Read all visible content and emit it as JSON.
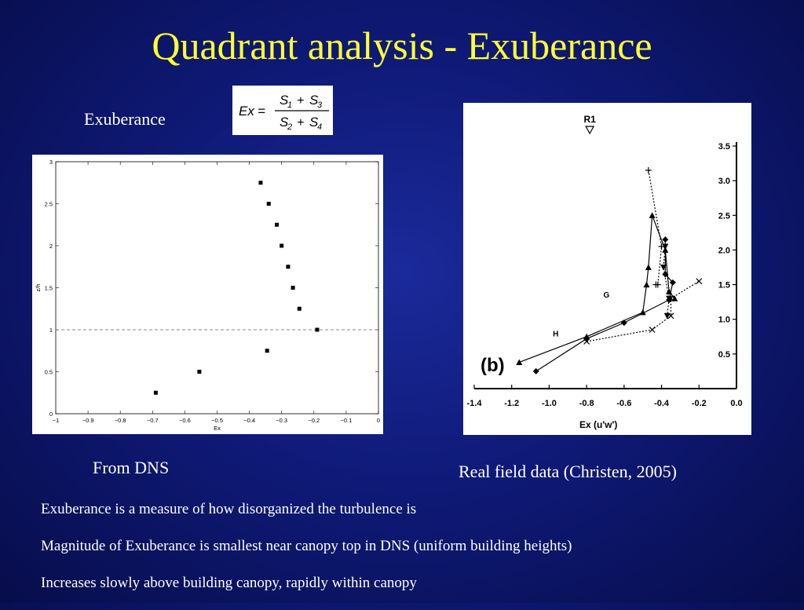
{
  "slide": {
    "title": "Quadrant analysis - Exuberance",
    "exuberance_label": "Exuberance",
    "dns_caption": "From DNS",
    "field_caption": "Real field data (Christen, 2005)",
    "bullets": [
      "Exuberance is a measure of how disorganized the turbulence is",
      "Magnitude of Exuberance is smallest near canopy top in DNS (uniform building heights)",
      "Increases slowly above building canopy, rapidly within canopy"
    ]
  },
  "formula": {
    "lhs": "Ex",
    "equals": "=",
    "numerator": [
      "S",
      "1",
      "+",
      "S",
      "3"
    ],
    "denominator": [
      "S",
      "2",
      "+",
      "S",
      "4"
    ]
  },
  "colors": {
    "title": "#ffff33",
    "text": "#ffffff",
    "background": "#0f1a78"
  },
  "chart_data": [
    {
      "type": "scatter",
      "title": "",
      "xlabel": "Ex",
      "ylabel": "z/h",
      "xlim": [
        -1,
        0
      ],
      "ylim": [
        0,
        3
      ],
      "x_ticks": [
        "−1",
        "−0.9",
        "−0.8",
        "−0.7",
        "−0.6",
        "−0.5",
        "−0.4",
        "−0.3",
        "−0.2",
        "−0.1",
        "0"
      ],
      "y_ticks": [
        "0",
        "0.5",
        "1",
        "1.5",
        "2",
        "2.5",
        "3"
      ],
      "reference_line_y": 1,
      "grid": false,
      "points": [
        {
          "x": -0.69,
          "y": 0.25
        },
        {
          "x": -0.555,
          "y": 0.5
        },
        {
          "x": -0.345,
          "y": 0.75
        },
        {
          "x": -0.19,
          "y": 1.0
        },
        {
          "x": -0.245,
          "y": 1.25
        },
        {
          "x": -0.265,
          "y": 1.5
        },
        {
          "x": -0.28,
          "y": 1.75
        },
        {
          "x": -0.3,
          "y": 2.0
        },
        {
          "x": -0.315,
          "y": 2.25
        },
        {
          "x": -0.34,
          "y": 2.5
        },
        {
          "x": -0.365,
          "y": 2.75
        }
      ]
    },
    {
      "type": "line",
      "panel_label": "(b)",
      "marker_label": "R1",
      "xlabel": "Ex (u'w')",
      "ylabel": "",
      "xlim": [
        -1.4,
        0.0
      ],
      "ylim": [
        0.0,
        3.5
      ],
      "x_ticks": [
        "-1.4",
        "-1.2",
        "-1.0",
        "-0.8",
        "-0.6",
        "-0.4",
        "-0.2",
        "0.0"
      ],
      "y_ticks": [
        "0.5",
        "1.0",
        "1.5",
        "2.0",
        "2.5",
        "3.0",
        "3.5"
      ],
      "point_labels": [
        {
          "text": "G",
          "x": -0.66,
          "y": 1.35
        },
        {
          "text": "H",
          "x": -0.93,
          "y": 0.79
        }
      ],
      "series": [
        {
          "marker": "triangle",
          "dash": "solid",
          "points": [
            [
              -1.16,
              0.38
            ],
            [
              -0.8,
              0.75
            ],
            [
              -0.5,
              1.1
            ],
            [
              -0.48,
              1.5
            ],
            [
              -0.47,
              1.75
            ],
            [
              -0.45,
              2.5
            ],
            [
              -0.38,
              2.0
            ],
            [
              -0.36,
              1.4
            ],
            [
              -0.33,
              1.3
            ]
          ]
        },
        {
          "marker": "diamond",
          "dash": "solid",
          "points": [
            [
              -1.07,
              0.25
            ],
            [
              -0.8,
              0.72
            ],
            [
              -0.6,
              0.95
            ],
            [
              -0.36,
              1.28
            ],
            [
              -0.34,
              1.53
            ],
            [
              -0.38,
              1.65
            ],
            [
              -0.38,
              2.15
            ]
          ]
        },
        {
          "marker": "down-triangle",
          "dash": "dotted",
          "points": [
            [
              -0.38,
              2.05
            ],
            [
              -0.39,
              1.75
            ],
            [
              -0.36,
              1.3
            ],
            [
              -0.37,
              1.05
            ]
          ]
        },
        {
          "marker": "plus",
          "dash": "dotted",
          "points": [
            [
              -0.47,
              3.15
            ],
            [
              -0.4,
              2.05
            ],
            [
              -0.42,
              1.5
            ],
            [
              -0.43,
              1.5
            ]
          ]
        },
        {
          "marker": "x",
          "dash": "dotted",
          "points": [
            [
              -0.8,
              0.68
            ],
            [
              -0.45,
              0.85
            ],
            [
              -0.35,
              1.05
            ],
            [
              -0.35,
              1.3
            ],
            [
              -0.2,
              1.55
            ]
          ]
        }
      ]
    }
  ]
}
